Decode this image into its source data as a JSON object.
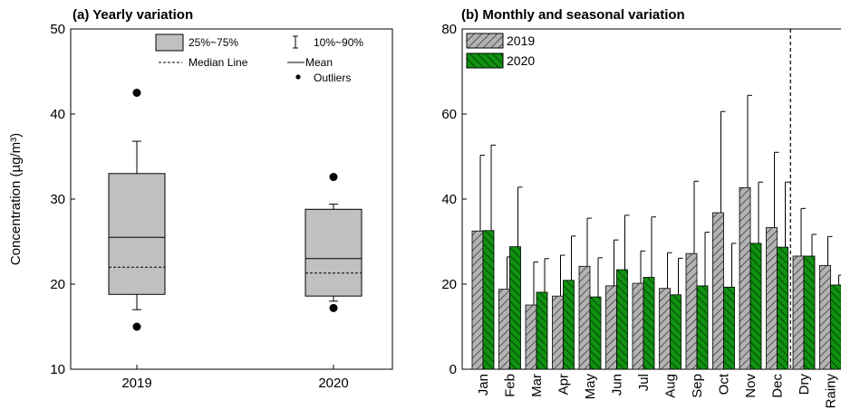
{
  "chart_data": [
    {
      "type": "box",
      "title": "(a) Yearly variation",
      "ylabel": "Concentration (µg/m³)",
      "ylim": [
        10,
        50
      ],
      "yticks": [
        "10",
        "20",
        "30",
        "40",
        "50"
      ],
      "categories": [
        "2019",
        "2020"
      ],
      "boxes": [
        {
          "q1": 18.8,
          "q3": 33.0,
          "median": 22.0,
          "mean": 25.5,
          "p10": 17.0,
          "p90": 36.8,
          "outliers": [
            42.5,
            15.0
          ]
        },
        {
          "q1": 18.6,
          "q3": 28.8,
          "median": 21.3,
          "mean": 23.0,
          "p10": 18.0,
          "p90": 29.4,
          "outliers": [
            32.6,
            17.2
          ]
        }
      ],
      "legend": {
        "box": "25%~75%",
        "whisker": "10%~90%",
        "median": "Median Line",
        "mean": "Mean",
        "outliers": "Outliers"
      },
      "colors": {
        "box_fill": "#c0c0c0",
        "outline": "#000000"
      }
    },
    {
      "type": "bar",
      "title": "(b) Monthly and seasonal variation",
      "ylim": [
        0,
        80
      ],
      "yticks": [
        "0",
        "20",
        "40",
        "60",
        "80"
      ],
      "categories": [
        "Jan",
        "Feb",
        "Mar",
        "Apr",
        "May",
        "Jun",
        "Jul",
        "Aug",
        "Sep",
        "Oct",
        "Nov",
        "Dec",
        "Dry",
        "Rainy"
      ],
      "series": [
        {
          "name": "2019",
          "color": "#b3b3b3",
          "values": [
            32.5,
            18.8,
            15.1,
            17.2,
            24.2,
            19.6,
            20.2,
            19.0,
            27.2,
            36.8,
            42.7,
            33.3,
            26.6,
            24.4
          ],
          "errors": [
            17.8,
            7.6,
            10.1,
            9.6,
            11.3,
            10.8,
            7.6,
            8.4,
            17.0,
            23.8,
            21.7,
            17.7,
            11.2,
            6.8
          ]
        },
        {
          "name": "2020",
          "color": "#119111",
          "values": [
            32.6,
            28.8,
            18.1,
            20.9,
            17.0,
            23.4,
            21.6,
            17.5,
            19.6,
            19.3,
            29.6,
            28.7,
            26.6,
            19.8
          ],
          "errors": [
            20.1,
            14.0,
            7.9,
            10.4,
            9.2,
            12.8,
            14.2,
            8.6,
            12.6,
            10.3,
            14.4,
            15.3,
            5.1,
            2.3
          ]
        }
      ],
      "divider_after": "Dec"
    }
  ]
}
